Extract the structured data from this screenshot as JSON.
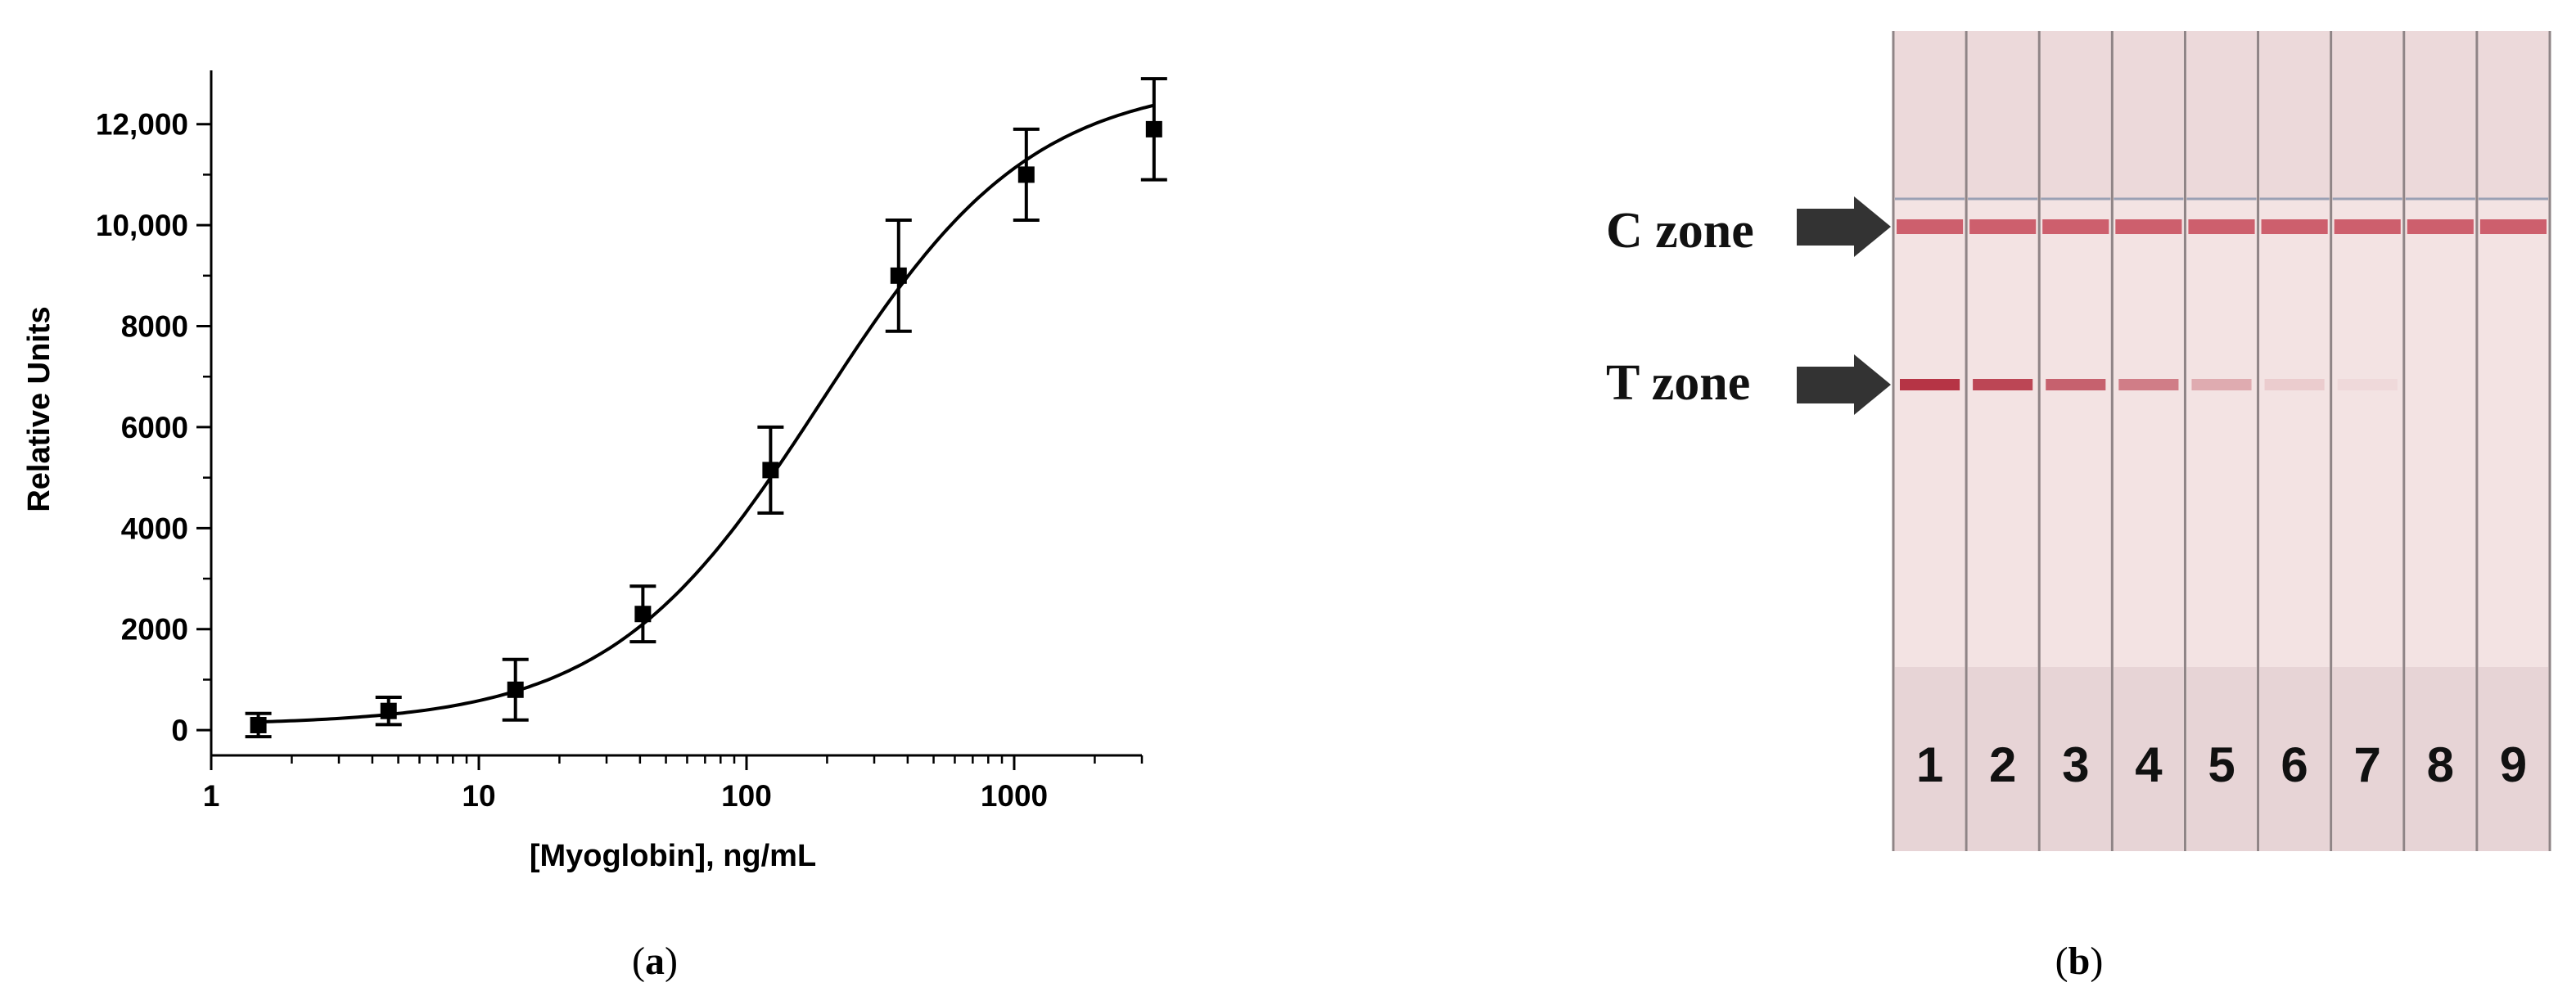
{
  "panel_a": {
    "caption_letter": "a",
    "chart_data": {
      "type": "scatter",
      "title": "",
      "xlabel": "[Myoglobin], ng/mL",
      "ylabel": "Relative Units",
      "xscale": "log",
      "xlim": [
        1,
        3000
      ],
      "ylim": [
        -500,
        13000
      ],
      "x_ticks": [
        1,
        10,
        100,
        1000
      ],
      "x_tick_labels": [
        "1",
        "10",
        "100",
        "1000"
      ],
      "y_ticks": [
        0,
        2000,
        4000,
        6000,
        8000,
        10000,
        12000
      ],
      "y_tick_labels": [
        "0",
        "2000",
        "4000",
        "6000",
        "8000",
        "10,000",
        "12,000"
      ],
      "grid": false,
      "points": [
        {
          "x": 1.5,
          "y": 100,
          "err": 230
        },
        {
          "x": 4.6,
          "y": 380,
          "err": 270
        },
        {
          "x": 13.7,
          "y": 800,
          "err": 600
        },
        {
          "x": 41,
          "y": 2300,
          "err": 550
        },
        {
          "x": 123,
          "y": 5150,
          "err": 850
        },
        {
          "x": 370,
          "y": 9000,
          "err": 1100
        },
        {
          "x": 1110,
          "y": 11000,
          "err": 900
        },
        {
          "x": 3330,
          "y": 11900,
          "err": 1000
        }
      ],
      "fit": {
        "type": "4PL",
        "bottom": 100,
        "top": 12900,
        "ec50": 190,
        "hill": 1.1
      }
    }
  },
  "panel_b": {
    "caption_letter": "b",
    "c_zone_label": "C zone",
    "t_zone_label": "T zone",
    "strip_numbers": [
      "1",
      "2",
      "3",
      "4",
      "5",
      "6",
      "7",
      "8",
      "9"
    ],
    "t_line_intensity": [
      0.95,
      0.85,
      0.7,
      0.55,
      0.3,
      0.12,
      0.05,
      0.0,
      0.0
    ],
    "colors": {
      "strip": "#f3e3e3",
      "c_line": "#c9505f",
      "t_line": "#b22a3c",
      "arrow": "#333333",
      "pad": "#e7d4d6"
    }
  }
}
